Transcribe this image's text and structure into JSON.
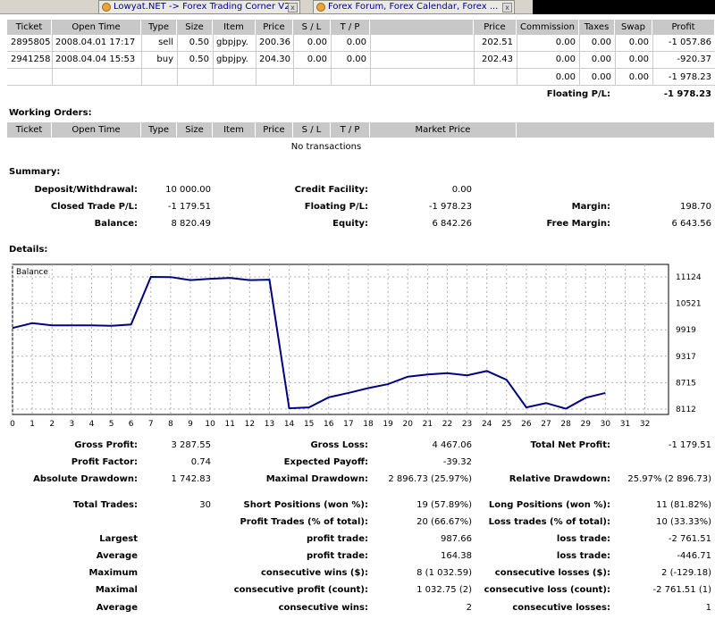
{
  "browser": {
    "tabs": [
      {
        "label": "Lowyat.NET -> Forex Trading Corner V2"
      },
      {
        "label": "Forex Forum, Forex Calendar, Forex ..."
      }
    ],
    "close_glyph": "x"
  },
  "open_trades": {
    "headers": [
      "Ticket",
      "Open Time",
      "Type",
      "Size",
      "Item",
      "Price",
      "S / L",
      "T / P",
      "",
      "Price",
      "Commission",
      "Taxes",
      "Swap",
      "Profit"
    ],
    "rows": [
      [
        "2895805",
        "2008.04.01 17:17",
        "sell",
        "0.50",
        "gbpjpy.",
        "200.36",
        "0.00",
        "0.00",
        "",
        "202.51",
        "0.00",
        "0.00",
        "0.00",
        "-1 057.86"
      ],
      [
        "2941258",
        "2008.04.04 15:53",
        "buy",
        "0.50",
        "gbpjpy.",
        "204.30",
        "0.00",
        "0.00",
        "",
        "202.43",
        "0.00",
        "0.00",
        "0.00",
        "-920.37"
      ]
    ],
    "totals": {
      "commission": "0.00",
      "taxes": "0.00",
      "swap": "0.00",
      "profit": "-1 978.23"
    },
    "floating_label": "Floating P/L:",
    "floating_value": "-1 978.23"
  },
  "working_orders": {
    "title": "Working Orders:",
    "headers": [
      "Ticket",
      "Open Time",
      "Type",
      "Size",
      "Item",
      "Price",
      "S / L",
      "T / P",
      "Market Price",
      ""
    ],
    "empty": "No transactions"
  },
  "summary": {
    "title": "Summary:",
    "deposit_label": "Deposit/Withdrawal:",
    "deposit": "10 000.00",
    "credit_label": "Credit Facility:",
    "credit": "0.00",
    "closed_label": "Closed Trade P/L:",
    "closed": "-1 179.51",
    "floating_label": "Floating P/L:",
    "floating": "-1 978.23",
    "margin_label": "Margin:",
    "margin": "198.70",
    "balance_label": "Balance:",
    "balance": "8 820.49",
    "equity_label": "Equity:",
    "equity": "6 842.26",
    "free_margin_label": "Free Margin:",
    "free_margin": "6 643.56"
  },
  "details": {
    "title": "Details:",
    "rows": [
      [
        [
          "Gross Profit:",
          "3 287.55"
        ],
        [
          "Gross Loss:",
          "4 467.06"
        ],
        [
          "Total Net Profit:",
          "-1 179.51"
        ]
      ],
      [
        [
          "Profit Factor:",
          "0.74"
        ],
        [
          "Expected Payoff:",
          "-39.32"
        ],
        [
          "",
          ""
        ]
      ],
      [
        [
          "Absolute Drawdown:",
          "1 742.83"
        ],
        [
          "Maximal Drawdown:",
          "2 896.73 (25.97%)"
        ],
        [
          "Relative Drawdown:",
          "25.97% (2 896.73)"
        ]
      ],
      [
        [
          "Total Trades:",
          "30"
        ],
        [
          "Short Positions (won %):",
          "19 (57.89%)"
        ],
        [
          "Long Positions (won %):",
          "11 (81.82%)"
        ]
      ],
      [
        [
          "",
          ""
        ],
        [
          "Profit Trades (% of total):",
          "20 (66.67%)"
        ],
        [
          "Loss trades (% of total):",
          "10 (33.33%)"
        ]
      ],
      [
        [
          "Largest",
          ""
        ],
        [
          "profit trade:",
          "987.66"
        ],
        [
          "loss trade:",
          "-2 761.51"
        ]
      ],
      [
        [
          "Average",
          ""
        ],
        [
          "profit trade:",
          "164.38"
        ],
        [
          "loss trade:",
          "-446.71"
        ]
      ],
      [
        [
          "Maximum",
          ""
        ],
        [
          "consecutive wins ($):",
          "8 (1 032.59)"
        ],
        [
          "consecutive losses ($):",
          "2 (-129.18)"
        ]
      ],
      [
        [
          "Maximal",
          ""
        ],
        [
          "consecutive profit (count):",
          "1 032.75 (2)"
        ],
        [
          "consecutive loss (count):",
          "-2 761.51 (1)"
        ]
      ],
      [
        [
          "Average",
          ""
        ],
        [
          "consecutive wins:",
          "2"
        ],
        [
          "consecutive losses:",
          "1"
        ]
      ]
    ]
  },
  "chart_data": {
    "type": "line",
    "title": "Balance",
    "x": [
      0,
      1,
      2,
      3,
      4,
      5,
      6,
      7,
      8,
      9,
      10,
      11,
      12,
      13,
      14,
      15,
      16,
      17,
      18,
      19,
      20,
      21,
      22,
      23,
      24,
      25,
      26,
      27,
      28,
      29,
      30
    ],
    "values": [
      9960,
      10070,
      10020,
      10020,
      10020,
      10010,
      10040,
      11124,
      11120,
      11050,
      11080,
      11100,
      11050,
      11060,
      8130,
      8150,
      8380,
      8480,
      8590,
      8680,
      8850,
      8900,
      8930,
      8880,
      8980,
      8780,
      8150,
      8250,
      8120,
      8370,
      8480
    ],
    "x_ticks": [
      "0",
      "1",
      "2",
      "3",
      "4",
      "5",
      "6",
      "7",
      "8",
      "9",
      "10",
      "11",
      "12",
      "13",
      "14",
      "15",
      "16",
      "17",
      "18",
      "19",
      "20",
      "21",
      "22",
      "23",
      "24",
      "25",
      "26",
      "27",
      "28",
      "29",
      "30",
      "31",
      "32"
    ],
    "y_ticks": [
      "11124",
      "10521",
      "9919",
      "9317",
      "8715",
      "8112"
    ],
    "xlim": [
      0,
      32
    ],
    "ylim": [
      8112,
      11124
    ],
    "grid": true,
    "line_color": "#000080"
  }
}
